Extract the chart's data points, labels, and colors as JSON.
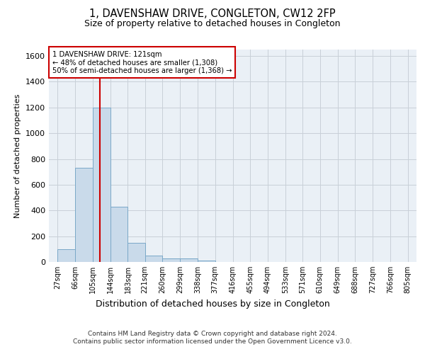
{
  "title": "1, DAVENSHAW DRIVE, CONGLETON, CW12 2FP",
  "subtitle": "Size of property relative to detached houses in Congleton",
  "xlabel": "Distribution of detached houses by size in Congleton",
  "ylabel": "Number of detached properties",
  "footer_line1": "Contains HM Land Registry data © Crown copyright and database right 2024.",
  "footer_line2": "Contains public sector information licensed under the Open Government Licence v3.0.",
  "bar_color": "#c9daea",
  "bar_edge_color": "#7aa8c8",
  "grid_color": "#c8d0d8",
  "background_color": "#eaf0f6",
  "bin_labels": [
    "27sqm",
    "66sqm",
    "105sqm",
    "144sqm",
    "183sqm",
    "221sqm",
    "260sqm",
    "299sqm",
    "338sqm",
    "377sqm",
    "416sqm",
    "455sqm",
    "494sqm",
    "533sqm",
    "571sqm",
    "610sqm",
    "649sqm",
    "688sqm",
    "727sqm",
    "766sqm",
    "805sqm"
  ],
  "bin_edges": [
    27,
    66,
    105,
    144,
    183,
    221,
    260,
    299,
    338,
    377,
    416,
    455,
    494,
    533,
    571,
    610,
    649,
    688,
    727,
    766,
    805
  ],
  "bar_heights": [
    100,
    730,
    1200,
    430,
    148,
    50,
    30,
    25,
    10,
    0,
    0,
    0,
    0,
    0,
    0,
    0,
    0,
    0,
    0,
    0
  ],
  "ylim": [
    0,
    1650
  ],
  "yticks": [
    0,
    200,
    400,
    600,
    800,
    1000,
    1200,
    1400,
    1600
  ],
  "property_size": 121,
  "property_line_color": "#cc0000",
  "annotation_text": "1 DAVENSHAW DRIVE: 121sqm\n← 48% of detached houses are smaller (1,308)\n50% of semi-detached houses are larger (1,368) →",
  "annotation_box_color": "#cc0000",
  "annotation_text_color": "#000000",
  "title_fontsize": 10.5,
  "subtitle_fontsize": 9,
  "ylabel_fontsize": 8,
  "xlabel_fontsize": 9
}
